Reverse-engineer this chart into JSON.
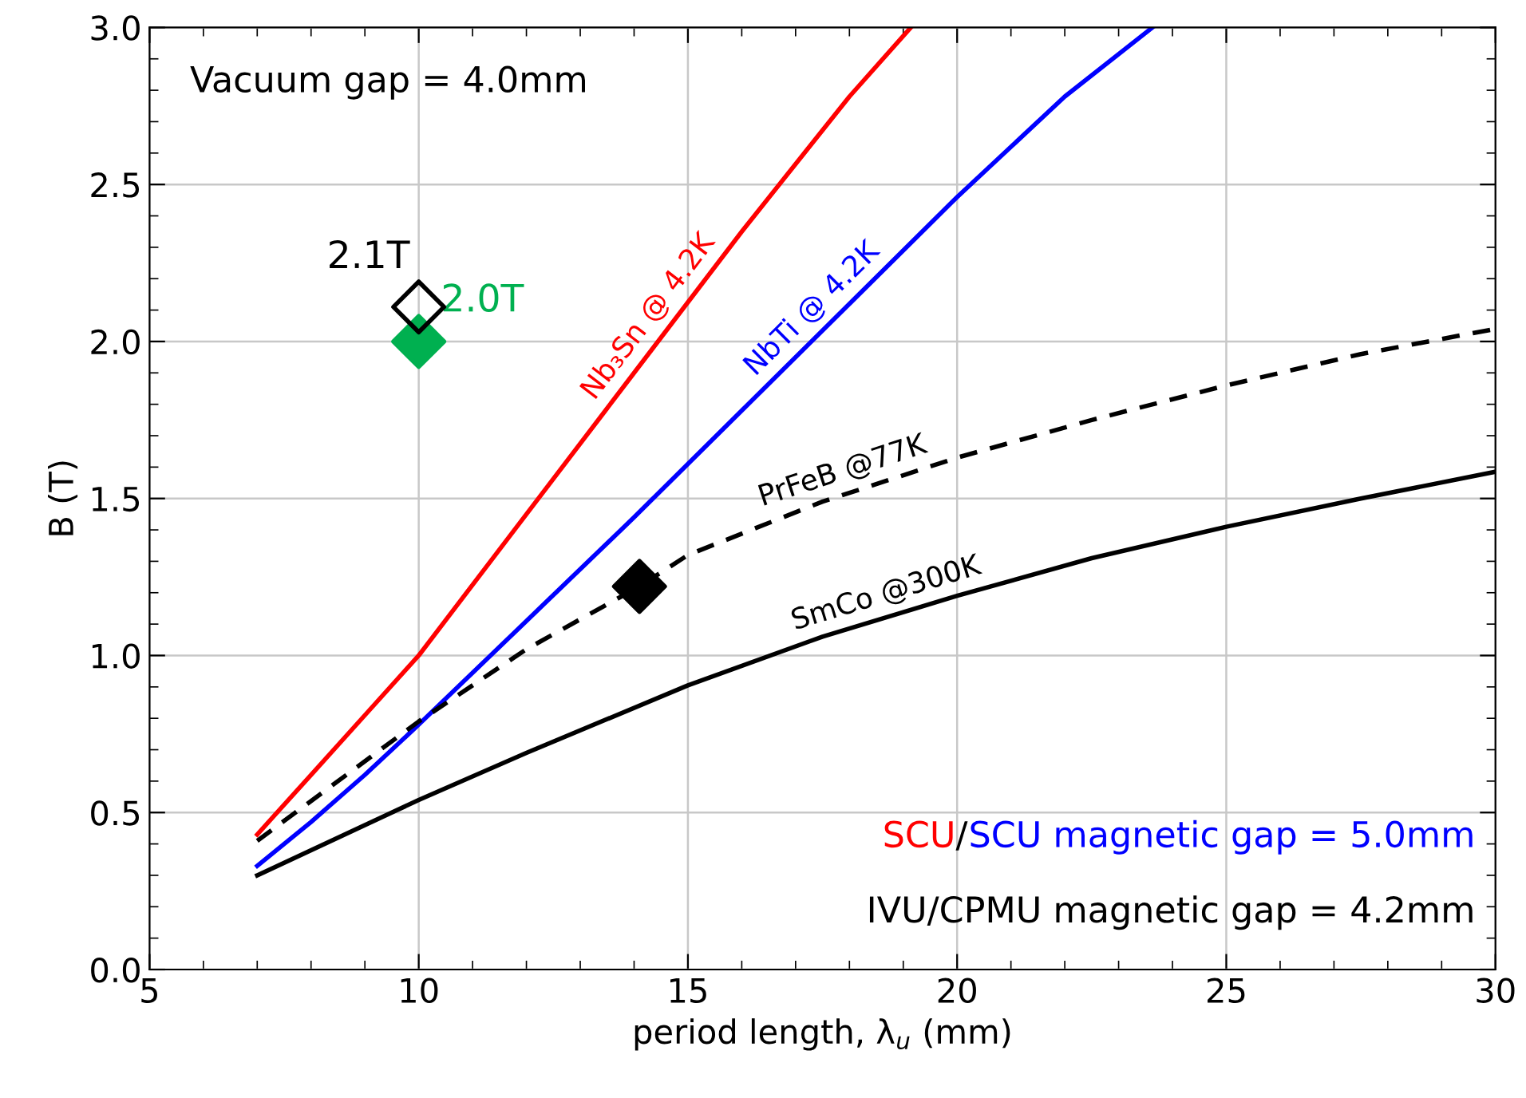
{
  "chart_data": {
    "type": "line",
    "xlabel": "period length, λ$_{u}$ (mm)",
    "ylabel": "B (T)",
    "xlim": [
      5,
      30
    ],
    "ylim": [
      0,
      3.0
    ],
    "xticks": [
      5,
      10,
      15,
      20,
      25,
      30
    ],
    "yticks": [
      {
        "value": 0,
        "label": "0.0"
      },
      0.5,
      {
        "value": 1,
        "label": "1.0"
      },
      1.5,
      {
        "value": 2,
        "label": "2.0"
      },
      2.5,
      {
        "value": 3,
        "label": "3.0"
      }
    ],
    "grid": true,
    "legend": false,
    "series": [
      {
        "name": "Nb₃Sn @ 4.2K",
        "color": "#ff0000",
        "x": [
          7,
          8,
          9,
          10,
          12,
          14,
          16,
          18,
          19.14
        ],
        "values": [
          0.43,
          0.62,
          0.81,
          1.0,
          1.45,
          1.9,
          2.35,
          2.78,
          3.0
        ]
      },
      {
        "name": "NbTi @ 4.2K",
        "color": "#0000ff",
        "x": [
          7,
          8,
          9,
          10,
          12,
          14,
          16,
          18,
          20,
          22,
          23.63
        ],
        "values": [
          0.33,
          0.47,
          0.62,
          0.78,
          1.11,
          1.44,
          1.78,
          2.12,
          2.46,
          2.78,
          3.0
        ]
      },
      {
        "name": "PrFeB @77K",
        "color": "#000000",
        "line_style": "dashed",
        "x": [
          7,
          10,
          12,
          14.1,
          15,
          17.5,
          20,
          22.5,
          25,
          27.5,
          30
        ],
        "values": [
          0.41,
          0.79,
          1.02,
          1.22,
          1.32,
          1.49,
          1.63,
          1.75,
          1.86,
          1.96,
          2.04
        ]
      },
      {
        "name": "SmCo @300K",
        "color": "#000000",
        "x": [
          7,
          10,
          12,
          15,
          17.5,
          20,
          22.5,
          25,
          27.5,
          30
        ],
        "values": [
          0.3,
          0.54,
          0.69,
          0.905,
          1.06,
          1.19,
          1.31,
          1.41,
          1.5,
          1.585
        ]
      },
      {
        "type": "scatter",
        "marker": "diamond-open",
        "color": "#000000",
        "x": [
          10
        ],
        "values": [
          2.11
        ]
      },
      {
        "type": "scatter",
        "marker": "diamond",
        "color": "#00b050",
        "x": [
          10
        ],
        "values": [
          2.0
        ]
      },
      {
        "type": "scatter",
        "marker": "diamond",
        "color": "#000000",
        "x": [
          14.1
        ],
        "values": [
          1.22
        ]
      }
    ],
    "annotations": [
      {
        "text": "2.1T",
        "x": 10,
        "y": 2.11
      },
      {
        "text": "2.0T",
        "x": 10,
        "y": 2.0
      },
      "Vacuum gap = 4.0mm",
      "SCU",
      "/",
      "SCU magnetic gap = 5.0mm",
      "IVU/CPMU magnetic gap = 4.2mm"
    ]
  }
}
